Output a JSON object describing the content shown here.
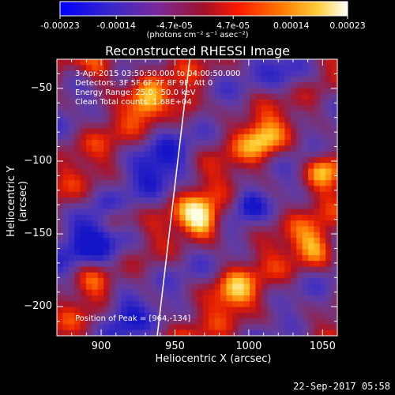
{
  "chart_data": {
    "type": "heatmap",
    "title": "Reconstructed RHESSI Image",
    "xlabel": "Heliocentric X (arcsec)",
    "ylabel": "Heliocentric Y (arcsec)",
    "xlim": [
      870,
      1060
    ],
    "ylim": [
      -220,
      -30
    ],
    "x_ticks": [
      900,
      950,
      1000,
      1050
    ],
    "y_ticks": [
      -50,
      -100,
      -150,
      -200
    ],
    "colorbar": {
      "min": -0.00023,
      "max": 0.00023,
      "tick_labels": [
        "-0.00023",
        "-0.00014",
        "-4.7e-05",
        "4.7e-05",
        "0.00014",
        "0.00023"
      ],
      "tick_values": [
        -0.00023,
        -0.00014,
        -4.7e-05,
        4.7e-05,
        0.00014,
        0.00023
      ],
      "unit": "(photons cm⁻² s⁻¹ asec⁻²)",
      "colors": [
        "#0000ff",
        "#5a2ca8",
        "#8030a0",
        "#b00030",
        "#ff2000",
        "#ff9000",
        "#ffe060",
        "#ffffff"
      ]
    },
    "peak": [
      964,
      -134
    ],
    "limb_line": [
      [
        938,
        -220
      ],
      [
        960,
        -30
      ]
    ],
    "grid": false
  },
  "info_lines": [
    "3-Apr-2015 03:50:50.000 to 04:00:50.000",
    "Detectors: 3F 5F 6F 7F 8F 9F, Att 0",
    "Energy Range: 25.0 - 50.0 keV",
    "Clean    Total counts: 1.68E+04"
  ],
  "peak_text": "Position of Peak = [964,-134]",
  "footer_timestamp": "22-Sep-2017 05:58",
  "axis_color": "#ffffff"
}
